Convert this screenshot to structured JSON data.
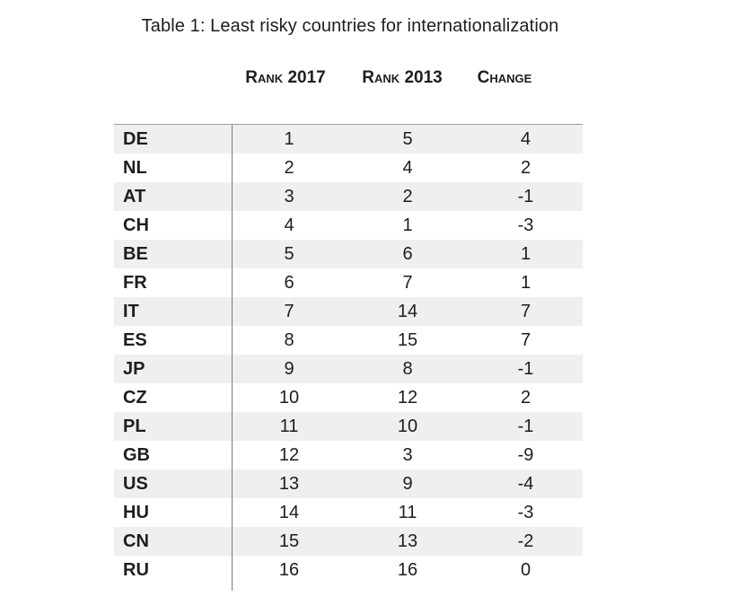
{
  "title": "Table 1: Least risky countries for internationalization",
  "headers": {
    "rank_2017": "Rank 2017",
    "rank_2013": "Rank 2013",
    "change": "Change"
  },
  "rows": [
    {
      "country": "DE",
      "rank_2017": "1",
      "rank_2013": "5",
      "change": "4"
    },
    {
      "country": "NL",
      "rank_2017": "2",
      "rank_2013": "4",
      "change": "2"
    },
    {
      "country": "AT",
      "rank_2017": "3",
      "rank_2013": "2",
      "change": "-1"
    },
    {
      "country": "CH",
      "rank_2017": "4",
      "rank_2013": "1",
      "change": "-3"
    },
    {
      "country": "BE",
      "rank_2017": "5",
      "rank_2013": "6",
      "change": "1"
    },
    {
      "country": "FR",
      "rank_2017": "6",
      "rank_2013": "7",
      "change": "1"
    },
    {
      "country": "IT",
      "rank_2017": "7",
      "rank_2013": "14",
      "change": "7"
    },
    {
      "country": "ES",
      "rank_2017": "8",
      "rank_2013": "15",
      "change": "7"
    },
    {
      "country": "JP",
      "rank_2017": "9",
      "rank_2013": "8",
      "change": "-1"
    },
    {
      "country": "CZ",
      "rank_2017": "10",
      "rank_2013": "12",
      "change": "2"
    },
    {
      "country": "PL",
      "rank_2017": "11",
      "rank_2013": "10",
      "change": "-1"
    },
    {
      "country": "GB",
      "rank_2017": "12",
      "rank_2013": "3",
      "change": "-9"
    },
    {
      "country": "US",
      "rank_2017": "13",
      "rank_2013": "9",
      "change": "-4"
    },
    {
      "country": "HU",
      "rank_2017": "14",
      "rank_2013": "11",
      "change": "-3"
    },
    {
      "country": "CN",
      "rank_2017": "15",
      "rank_2013": "13",
      "change": "-2"
    },
    {
      "country": "RU",
      "rank_2017": "16",
      "rank_2013": "16",
      "change": "0"
    }
  ]
}
